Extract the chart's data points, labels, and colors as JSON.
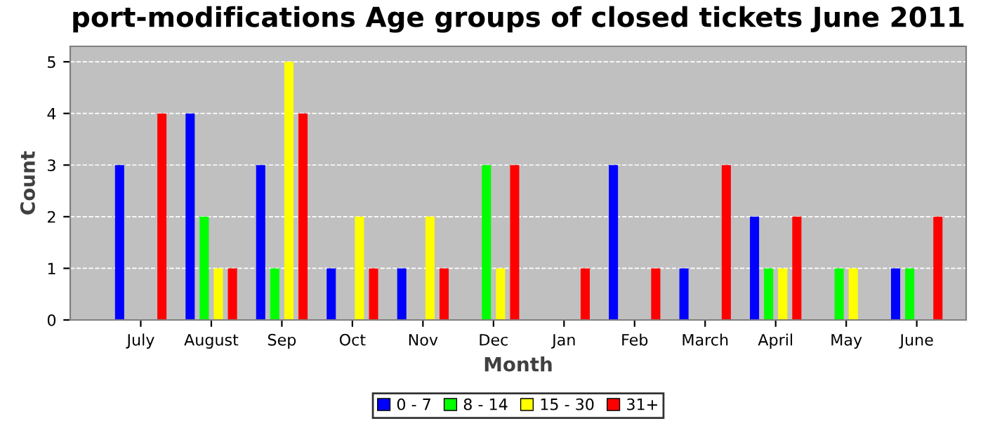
{
  "chart_data": {
    "type": "bar",
    "title": "port-modifications Age groups of closed tickets June 2011",
    "xlabel": "Month",
    "ylabel": "Count",
    "categories": [
      "July",
      "August",
      "Sep",
      "Oct",
      "Nov",
      "Dec",
      "Jan",
      "Feb",
      "March",
      "April",
      "May",
      "June"
    ],
    "series": [
      {
        "name": "0 - 7",
        "color": "#0000ff",
        "values": [
          3,
          4,
          3,
          1,
          1,
          0,
          0,
          3,
          1,
          2,
          0,
          1
        ]
      },
      {
        "name": "8 - 14",
        "color": "#00ff00",
        "values": [
          0,
          2,
          1,
          0,
          0,
          3,
          0,
          0,
          0,
          1,
          1,
          1
        ]
      },
      {
        "name": "15 - 30",
        "color": "#ffff00",
        "values": [
          0,
          1,
          5,
          2,
          2,
          1,
          0,
          0,
          0,
          1,
          1,
          0
        ]
      },
      {
        "name": "31+",
        "color": "#ff0000",
        "values": [
          4,
          1,
          4,
          1,
          1,
          3,
          1,
          1,
          3,
          2,
          0,
          2
        ]
      }
    ],
    "ylim": [
      0,
      5.3
    ],
    "yticks": [
      0,
      1,
      2,
      3,
      4,
      5
    ],
    "grid": "y",
    "legend": "bottom"
  }
}
